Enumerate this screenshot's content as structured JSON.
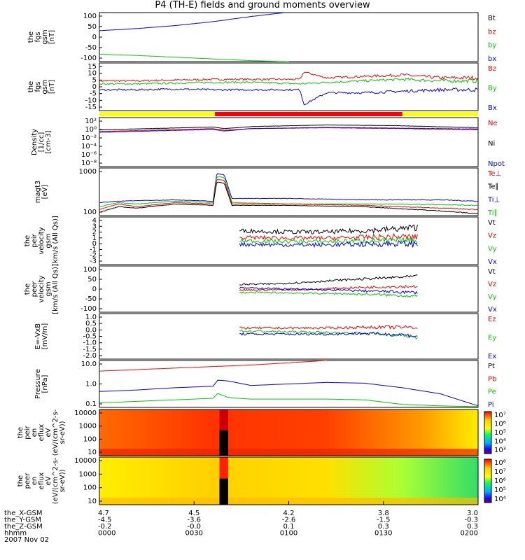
{
  "title": "P4 (TH-E) fields and ground moments overview",
  "colors": {
    "black": "#000000",
    "red": "#ff0000",
    "green": "#00cc00",
    "blue": "#0000ff",
    "yellow": "#ffff00"
  },
  "chart_data": [
    {
      "type": "line",
      "id": "fgs",
      "ylabel": [
        "the",
        "fgs",
        "gsm",
        "[nT]"
      ],
      "ylim": [
        -100,
        100
      ],
      "ticks": [
        "100",
        "50",
        "0",
        "-50",
        "-100"
      ],
      "legend": [
        {
          "label": "Bt",
          "color": "#000000"
        },
        {
          "label": "bz",
          "color": "#ff0000"
        },
        {
          "label": "by",
          "color": "#00cc00"
        },
        {
          "label": "bx",
          "color": "#0000ff"
        }
      ],
      "series": [
        {
          "name": "bx",
          "color": "#0000ff",
          "x": [
            0,
            0.1,
            0.2,
            0.3,
            0.4,
            0.49
          ],
          "values": [
            26,
            35,
            47,
            63,
            84,
            100
          ]
        },
        {
          "name": "by",
          "color": "#00cc00",
          "x": [
            0,
            0.1,
            0.2,
            0.3,
            0.4,
            0.5
          ],
          "values": [
            -70,
            -75,
            -82,
            -89,
            -96,
            -100
          ]
        }
      ]
    },
    {
      "type": "line",
      "id": "fgs_zoom",
      "ylabel": [
        "the",
        "fgs",
        "gsm",
        "[nT]"
      ],
      "ylim": [
        -17,
        15
      ],
      "ticks": [
        "15",
        "10",
        "5",
        "0",
        "-5",
        "-10",
        "-15"
      ],
      "legend": [
        {
          "label": "Bz",
          "color": "#ff0000"
        },
        {
          "label": "By",
          "color": "#00cc00"
        },
        {
          "label": "Bx",
          "color": "#0000ff"
        }
      ],
      "series": [
        {
          "name": "Bz",
          "color": "#ff0000",
          "x": [
            0,
            0.1,
            0.2,
            0.3,
            0.4,
            0.53,
            0.54,
            0.6,
            0.7,
            0.8,
            0.9,
            1
          ],
          "values": [
            3,
            3,
            3.5,
            4,
            4,
            4,
            9,
            5,
            6,
            7,
            5,
            5
          ]
        },
        {
          "name": "By",
          "color": "#00cc00",
          "x": [
            0,
            0.1,
            0.2,
            0.3,
            0.4,
            0.53,
            0.6,
            0.7,
            0.8,
            0.9,
            1
          ],
          "values": [
            1,
            1,
            1.5,
            2,
            2,
            1,
            2,
            3,
            4,
            3,
            3
          ]
        },
        {
          "name": "Bx",
          "color": "#0000ff",
          "x": [
            0,
            0.1,
            0.2,
            0.3,
            0.4,
            0.53,
            0.54,
            0.6,
            0.7,
            0.8,
            0.9,
            1
          ],
          "values": [
            -3,
            -3,
            -2.5,
            -3,
            -3,
            -3,
            -13,
            -5,
            -5,
            -4,
            -3,
            -3
          ]
        }
      ]
    },
    {
      "type": "area",
      "id": "mode_bar",
      "segments": [
        {
          "x0": 0,
          "x1": 0.305,
          "color": "#ffff00"
        },
        {
          "x0": 0.305,
          "x1": 0.8,
          "color": "#ff0000"
        },
        {
          "x0": 0.8,
          "x1": 1,
          "color": "#ffff00"
        }
      ]
    },
    {
      "type": "line",
      "id": "density",
      "ylabel": [
        "Density",
        "[1/cc]",
        "[cm-3]"
      ],
      "ylog": true,
      "ylim": [
        -9,
        3
      ],
      "ticks": [
        "10²",
        "10⁰",
        "10⁻²",
        "10⁻⁴",
        "10⁻⁶",
        "10⁻⁸"
      ],
      "legend": [
        {
          "label": "Ne",
          "color": "#ff0000"
        },
        {
          "label": "Ni",
          "color": "#000000"
        },
        {
          "label": "Npot",
          "color": "#0000ff"
        }
      ],
      "series": [
        {
          "name": "Ni",
          "color": "#000000",
          "x": [
            0,
            0.3,
            0.33,
            0.4,
            0.6,
            0.8,
            1
          ],
          "values": [
            0,
            0.7,
            0.3,
            0.8,
            1.2,
            1,
            0.5
          ]
        },
        {
          "name": "Ne",
          "color": "#ff0000",
          "x": [
            0,
            0.3,
            0.33,
            0.4,
            0.6,
            0.8,
            1
          ],
          "values": [
            -0.4,
            0.3,
            -0.1,
            0.3,
            0.5,
            0.3,
            0
          ]
        },
        {
          "name": "Npot",
          "color": "#0000ff",
          "x": [
            0,
            0.3,
            0.33,
            0.4,
            0.6,
            0.8,
            1
          ],
          "values": [
            -0.6,
            0.1,
            -0.3,
            0.3,
            0.6,
            0.4,
            0.2
          ]
        }
      ]
    },
    {
      "type": "line",
      "id": "temp",
      "ylabel": [
        "magt3",
        "[eV]"
      ],
      "ylog": true,
      "ylim": [
        1.88,
        3.6
      ],
      "ticks": [
        "1000",
        "100"
      ],
      "legend": [
        {
          "label": "Te⊥",
          "color": "#ff0000"
        },
        {
          "label": "Te∥",
          "color": "#000000"
        },
        {
          "label": "Ti⊥",
          "color": "#0000ff"
        },
        {
          "label": "Ti∥",
          "color": "#00cc00"
        }
      ],
      "series": [
        {
          "name": "Ti⊥",
          "color": "#0000ff",
          "x": [
            0,
            0.05,
            0.1,
            0.2,
            0.3,
            0.31,
            0.33,
            0.35,
            0.5,
            0.7,
            0.9,
            1
          ],
          "values": [
            2.35,
            2.4,
            2.42,
            2.45,
            2.4,
            3.4,
            3.35,
            2.5,
            2.5,
            2.45,
            2.45,
            2.4
          ]
        },
        {
          "name": "Ti∥",
          "color": "#00cc00",
          "x": [
            0,
            0.05,
            0.1,
            0.2,
            0.3,
            0.31,
            0.33,
            0.35,
            0.5,
            0.7,
            0.9,
            1
          ],
          "values": [
            2.2,
            2.35,
            2.3,
            2.4,
            2.35,
            3.3,
            3.25,
            2.35,
            2.3,
            2.3,
            2.28,
            2.25
          ]
        },
        {
          "name": "Te⊥",
          "color": "#ff0000",
          "x": [
            0,
            0.05,
            0.1,
            0.2,
            0.3,
            0.31,
            0.33,
            0.35,
            0.5,
            0.7,
            0.9,
            1
          ],
          "values": [
            2.1,
            2.3,
            2.2,
            2.35,
            2.3,
            3.2,
            3.15,
            2.3,
            2.3,
            2.25,
            2.15,
            2.1
          ]
        },
        {
          "name": "Te∥",
          "color": "#000000",
          "x": [
            0,
            0.05,
            0.1,
            0.2,
            0.3,
            0.31,
            0.33,
            0.35,
            0.5,
            0.7,
            0.9,
            1
          ],
          "values": [
            2.0,
            2.2,
            2.15,
            2.3,
            2.25,
            3.1,
            3.05,
            2.25,
            2.25,
            2.2,
            2.05,
            1.95
          ]
        }
      ]
    },
    {
      "type": "line",
      "id": "peir_velocity",
      "ylabel": [
        "the",
        "peir",
        "velocity",
        "gsm",
        "[km/s (All Qs)]"
      ],
      "ylim": [
        -3,
        4
      ],
      "ticks": [
        "4",
        "3",
        "2",
        "1",
        "0",
        "-1",
        "-2",
        "-3"
      ],
      "legend": [
        {
          "label": "Vt",
          "color": "#000000"
        },
        {
          "label": "Vz",
          "color": "#ff0000"
        },
        {
          "label": "Vy",
          "color": "#00cc00"
        },
        {
          "label": "Vx",
          "color": "#0000ff"
        }
      ],
      "series": [
        {
          "name": "Vt",
          "color": "#000000",
          "x": [
            0.37,
            0.5,
            0.6,
            0.7,
            0.8,
            0.84
          ],
          "values": [
            2.0,
            1.8,
            1.8,
            2.0,
            2.3,
            2.5
          ]
        },
        {
          "name": "Vz",
          "color": "#ff0000",
          "x": [
            0.37,
            0.5,
            0.6,
            0.7,
            0.8,
            0.84
          ],
          "values": [
            1.0,
            0.9,
            0.9,
            1.0,
            1.1,
            1.0
          ]
        },
        {
          "name": "Vy",
          "color": "#00cc00",
          "x": [
            0.37,
            0.5,
            0.6,
            0.7,
            0.8,
            0.84
          ],
          "values": [
            0.5,
            0.4,
            0.4,
            0.5,
            0.5,
            0.6
          ]
        },
        {
          "name": "Vx",
          "color": "#0000ff",
          "x": [
            0.37,
            0.5,
            0.6,
            0.7,
            0.8,
            0.84
          ],
          "values": [
            0,
            -0.1,
            -0.1,
            0,
            0.1,
            0
          ]
        }
      ]
    },
    {
      "type": "line",
      "id": "peer_velocity",
      "ylabel": [
        "the",
        "peer",
        "velocity",
        "gsm",
        "[km/s (All Qs)]"
      ],
      "ylim": [
        -100,
        100
      ],
      "ticks": [
        "100",
        "50",
        "0",
        "-50",
        "-100"
      ],
      "legend": [
        {
          "label": "Vt",
          "color": "#000000"
        },
        {
          "label": "Vz",
          "color": "#ff0000"
        },
        {
          "label": "Vy",
          "color": "#00cc00"
        },
        {
          "label": "Vx",
          "color": "#0000ff"
        }
      ],
      "series": [
        {
          "name": "Vt",
          "color": "#000000",
          "x": [
            0.37,
            0.45,
            0.55,
            0.65,
            0.75,
            0.84
          ],
          "values": [
            20,
            22,
            30,
            40,
            48,
            55
          ]
        },
        {
          "name": "Vz",
          "color": "#ff0000",
          "x": [
            0.37,
            0.45,
            0.55,
            0.65,
            0.75,
            0.84
          ],
          "values": [
            -5,
            -3,
            -2,
            5,
            10,
            12
          ]
        },
        {
          "name": "Vx",
          "color": "#0000ff",
          "x": [
            0.37,
            0.45,
            0.55,
            0.65,
            0.75,
            0.84
          ],
          "values": [
            5,
            3,
            -2,
            -5,
            -10,
            -15
          ]
        },
        {
          "name": "Vy",
          "color": "#00cc00",
          "x": [
            0.37,
            0.45,
            0.55,
            0.65,
            0.75,
            0.84
          ],
          "values": [
            -15,
            -15,
            -18,
            -20,
            -25,
            -30
          ]
        }
      ]
    },
    {
      "type": "line",
      "id": "efield",
      "ylabel": [
        "E=-VxB",
        "[mV/m]"
      ],
      "ylim": [
        -2,
        1
      ],
      "ticks": [
        "1.0",
        "0.5",
        "0.0",
        "-0.5",
        "-1.0",
        "-1.5",
        "-2.0"
      ],
      "legend": [
        {
          "label": "Ez",
          "color": "#ff0000"
        },
        {
          "label": "Ey",
          "color": "#00cc00"
        },
        {
          "label": "Ex",
          "color": "#0000ff"
        }
      ],
      "series": [
        {
          "name": "Ez",
          "color": "#ff0000",
          "x": [
            0.37,
            0.5,
            0.6,
            0.7,
            0.8,
            0.84
          ],
          "values": [
            0.05,
            0.05,
            0.05,
            0.1,
            0.1,
            0.1
          ]
        },
        {
          "name": "Ey",
          "color": "#00cc00",
          "x": [
            0.37,
            0.5,
            0.6,
            0.7,
            0.8,
            0.84
          ],
          "values": [
            -0.15,
            -0.2,
            -0.25,
            -0.3,
            -0.4,
            -0.6
          ]
        },
        {
          "name": "Ex",
          "color": "#0000ff",
          "x": [
            0.37,
            0.5,
            0.6,
            0.7,
            0.8,
            0.84
          ],
          "values": [
            -0.35,
            -0.35,
            -0.35,
            -0.3,
            -0.4,
            -0.5
          ]
        }
      ]
    },
    {
      "type": "line",
      "id": "pressure",
      "ylabel": [
        "Pressure",
        "[nPa]"
      ],
      "ylog": true,
      "ylim": [
        -1.5,
        1.6
      ],
      "ticks": [
        "10.0",
        "1.0",
        "0.1"
      ],
      "legend": [
        {
          "label": "Pt",
          "color": "#000000"
        },
        {
          "label": "Pb",
          "color": "#ff0000"
        },
        {
          "label": "Pe",
          "color": "#00cc00"
        },
        {
          "label": "Pi",
          "color": "#0000ff"
        }
      ],
      "series": [
        {
          "name": "Pb",
          "color": "#ff0000",
          "x": [
            0,
            0.1,
            0.2,
            0.3,
            0.4,
            0.5,
            0.6
          ],
          "values": [
            0.9,
            1.0,
            1.1,
            1.2,
            1.3,
            1.45,
            1.6
          ]
        },
        {
          "name": "Pi",
          "color": "#0000ff",
          "x": [
            0,
            0.1,
            0.2,
            0.3,
            0.31,
            0.34,
            0.4,
            0.5,
            0.6,
            0.7,
            0.8,
            0.9,
            1
          ],
          "values": [
            -0.45,
            -0.35,
            -0.2,
            -0.1,
            0.3,
            0.25,
            -0.05,
            0.05,
            0.15,
            0.1,
            -0.2,
            -0.6,
            -1.4
          ]
        },
        {
          "name": "Pe",
          "color": "#00cc00",
          "x": [
            0,
            0.1,
            0.2,
            0.3,
            0.31,
            0.34,
            0.4,
            0.6,
            0.7,
            0.8,
            0.9,
            1
          ],
          "values": [
            -1.2,
            -1.1,
            -1.0,
            -0.9,
            -0.55,
            -0.85,
            -0.95,
            -0.95,
            -1.0,
            -1.3,
            -1.4,
            -1.45
          ]
        }
      ]
    },
    {
      "type": "heatmap",
      "id": "peir_eflux",
      "ylabel": [
        "the",
        "peir",
        "en",
        "eflux",
        "eV",
        "(eV/(cm^2-s-",
        "sr-eV))"
      ],
      "ticks": [
        "10000",
        "1000",
        "100",
        "10"
      ],
      "colorbar": {
        "ticks": [
          "10⁷",
          "10⁶",
          "10⁵",
          "10⁴",
          "10³"
        ]
      }
    },
    {
      "type": "heatmap",
      "id": "peer_eflux",
      "ylabel": [
        "the",
        "peer",
        "en",
        "eflux",
        "eV",
        "(eV/(cm^2-s-",
        "sr-eV))"
      ],
      "ticks": [
        "10000",
        "1000",
        "100",
        "10"
      ],
      "colorbar": {
        "ticks": [
          "10⁸",
          "10⁷",
          "10⁶",
          "10⁵",
          "10⁴"
        ]
      }
    }
  ],
  "xaxis": {
    "row_labels": [
      "the_X-GSM",
      "the_Y-GSM",
      "the_Z-GSM",
      "hhmm",
      "2007 Nov 02"
    ],
    "ticks": [
      {
        "x": 0,
        "values": [
          "4.7",
          "-4.5",
          "-0.2",
          "0000"
        ]
      },
      {
        "x": 0.25,
        "values": [
          "4.5",
          "-3.6",
          "-0.0",
          "0030"
        ]
      },
      {
        "x": 0.5,
        "values": [
          "4.2",
          "-2.6",
          "0.1",
          "0100"
        ]
      },
      {
        "x": 0.75,
        "values": [
          "3.8",
          "-1.5",
          "0.3",
          "0130"
        ]
      },
      {
        "x": 1,
        "values": [
          "3.0",
          "-0.3",
          "0.3",
          "0200"
        ]
      }
    ]
  }
}
